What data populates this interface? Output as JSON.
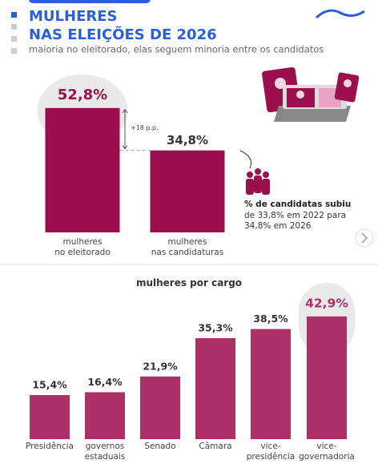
{
  "header": {
    "title_line1": "MULHERES",
    "title_line2": "NAS ELEIÇÕES DE 2026",
    "subtitle": "maioria no eleitorado, elas seguem minoria entre os candidatos"
  },
  "chart_data": [
    {
      "type": "bar",
      "categories": [
        "mulheres\nno eleitorado",
        "mulheres\nnas candidaturas"
      ],
      "values": [
        52.8,
        34.8
      ],
      "value_labels": [
        "52,8%",
        "34,8%"
      ],
      "color": "#9b0f4e",
      "highlight_index": 0,
      "difference_label": "+18 p.p.",
      "note_title": "% de candidatas subiu",
      "note_text": "de 33,8% em 2022 para\n34,8% em 2026"
    },
    {
      "type": "bar",
      "title": "mulheres por cargo",
      "categories": [
        "Presidência",
        "governos\nestaduais",
        "Senado",
        "Câmara",
        "vice-\npresidência",
        "vice-\ngovernadoria"
      ],
      "values": [
        15.4,
        16.4,
        21.9,
        35.3,
        38.5,
        42.9
      ],
      "value_labels": [
        "15,4%",
        "16,4%",
        "21,9%",
        "35,3%",
        "38,5%",
        "42,9%"
      ],
      "color": "#ad3068",
      "highlight_index": 5
    }
  ]
}
